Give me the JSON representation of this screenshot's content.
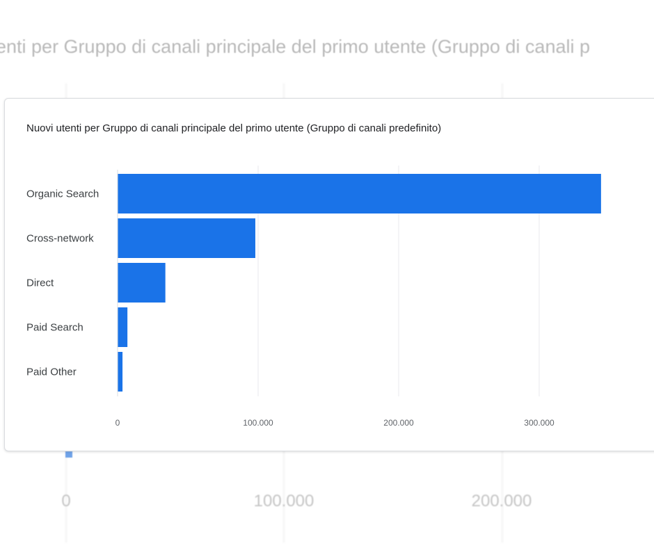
{
  "background": {
    "title": "enti per Gruppo di canali principale del primo utente (Gruppo di canali p",
    "ticks": [
      "0",
      "100.000",
      "200.000"
    ]
  },
  "chart_data": {
    "type": "bar",
    "orientation": "horizontal",
    "title": "Nuovi utenti per Gruppo di canali principale del primo utente (Gruppo di canali predefinito)",
    "categories": [
      "Organic Search",
      "Cross-network",
      "Direct",
      "Paid Search",
      "Paid Other"
    ],
    "values": [
      344000,
      98000,
      34000,
      7000,
      3500
    ],
    "xlim": [
      0,
      380000
    ],
    "xticks": [
      0,
      100000,
      200000,
      300000
    ],
    "xtick_labels": [
      "0",
      "100.000",
      "200.000",
      "300.000"
    ],
    "grid": true,
    "bar_color": "#1a73e8"
  }
}
